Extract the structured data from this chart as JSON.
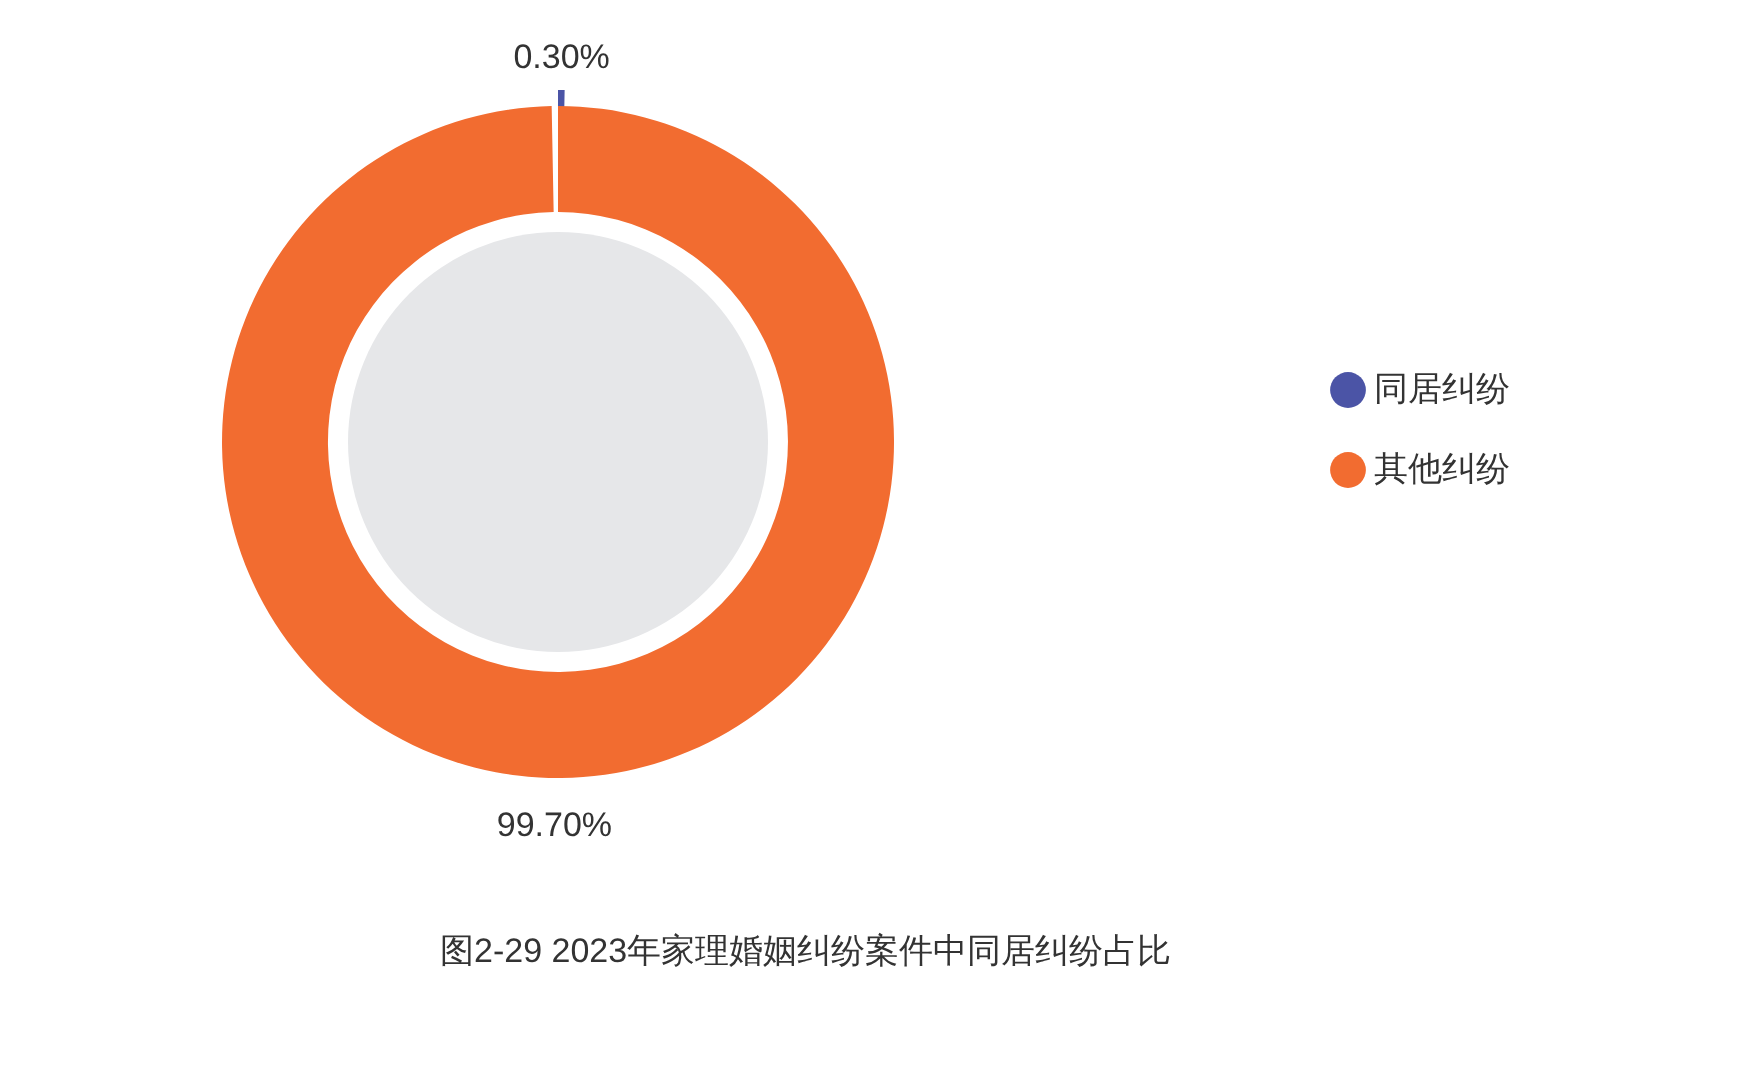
{
  "chart_data": {
    "type": "donut",
    "title": "图2-29  2023年家理婚姻纠纷案件中同居纠纷占比",
    "categories": [
      "同居纠纷",
      "其他纠纷"
    ],
    "values": [
      0.3,
      99.7
    ],
    "colors": [
      "#4b54a6",
      "#f26c30"
    ],
    "value_labels": [
      "0.30%",
      "99.70%"
    ],
    "legend": "right"
  }
}
